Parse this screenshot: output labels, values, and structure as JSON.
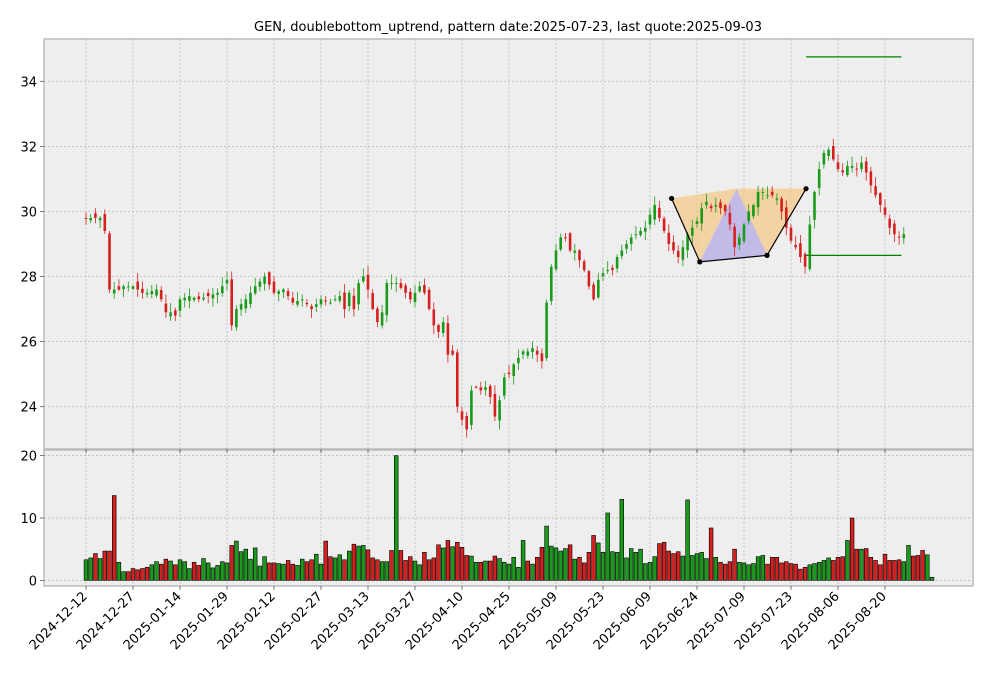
{
  "chart_data": {
    "type": "candlestick",
    "title": "GEN, doublebottom_uptrend, pattern date:2025-07-23, last quote:2025-09-03",
    "price_ylim": [
      22.7,
      35.3
    ],
    "price_yticks": [
      24,
      26,
      28,
      30,
      32,
      34
    ],
    "volume_ylim": [
      -0.9,
      20.9
    ],
    "volume_yticks": [
      0,
      10,
      20
    ],
    "x_tick_labels": [
      "2024-12-12",
      "2024-12-27",
      "2025-01-14",
      "2025-01-29",
      "2025-02-12",
      "2025-02-27",
      "2025-03-13",
      "2025-03-27",
      "2025-04-10",
      "2025-04-25",
      "2025-05-09",
      "2025-05-23",
      "2025-06-09",
      "2025-06-24",
      "2025-07-09",
      "2025-07-23",
      "2025-08-06",
      "2025-08-20"
    ],
    "x_tick_index": [
      0,
      10,
      20,
      30,
      40,
      50,
      60,
      70,
      80,
      90,
      100,
      110,
      120,
      130,
      140,
      150,
      160,
      170
    ],
    "grid": true,
    "candle_anchors": [
      [
        0,
        29.8
      ],
      [
        3,
        29.8
      ],
      [
        4,
        29.4
      ],
      [
        5,
        27.6
      ],
      [
        6,
        27.6
      ],
      [
        7,
        27.6
      ],
      [
        8,
        27.7
      ],
      [
        10,
        27.7
      ],
      [
        12,
        27.5
      ],
      [
        13,
        27.5
      ],
      [
        15,
        27.6
      ],
      [
        16,
        27.3
      ],
      [
        17,
        26.9
      ],
      [
        18,
        26.9
      ],
      [
        19,
        26.8
      ],
      [
        20,
        27.3
      ],
      [
        22,
        27.4
      ],
      [
        24,
        27.3
      ],
      [
        26,
        27.4
      ],
      [
        28,
        27.5
      ],
      [
        30,
        27.9
      ],
      [
        31,
        26.5
      ],
      [
        32,
        27.0
      ],
      [
        34,
        27.3
      ],
      [
        36,
        27.7
      ],
      [
        38,
        28.0
      ],
      [
        40,
        27.5
      ],
      [
        42,
        27.6
      ],
      [
        44,
        27.2
      ],
      [
        46,
        27.3
      ],
      [
        48,
        27.0
      ],
      [
        50,
        27.3
      ],
      [
        52,
        27.2
      ],
      [
        54,
        27.4
      ],
      [
        55,
        27.0
      ],
      [
        56,
        27.5
      ],
      [
        57,
        27.0
      ],
      [
        58,
        27.8
      ],
      [
        59,
        28.0
      ],
      [
        60,
        27.6
      ],
      [
        61,
        27.0
      ],
      [
        62,
        26.6
      ],
      [
        63,
        26.9
      ],
      [
        64,
        27.8
      ],
      [
        66,
        27.8
      ],
      [
        68,
        27.5
      ],
      [
        69,
        27.3
      ],
      [
        71,
        27.7
      ],
      [
        72,
        27.5
      ],
      [
        73,
        27.0
      ],
      [
        74,
        26.5
      ],
      [
        75,
        26.3
      ],
      [
        76,
        26.6
      ],
      [
        77,
        25.6
      ],
      [
        78,
        25.6
      ],
      [
        79,
        24.0
      ],
      [
        80,
        23.6
      ],
      [
        81,
        23.3
      ],
      [
        82,
        24.5
      ],
      [
        83,
        24.6
      ],
      [
        84,
        24.5
      ],
      [
        85,
        24.6
      ],
      [
        86,
        24.3
      ],
      [
        87,
        23.7
      ],
      [
        88,
        24.2
      ],
      [
        89,
        24.9
      ],
      [
        90,
        25.0
      ],
      [
        91,
        25.3
      ],
      [
        92,
        25.5
      ],
      [
        93,
        25.7
      ],
      [
        94,
        25.7
      ],
      [
        95,
        25.8
      ],
      [
        96,
        25.6
      ],
      [
        97,
        25.4
      ],
      [
        98,
        27.2
      ],
      [
        99,
        28.3
      ],
      [
        100,
        28.8
      ],
      [
        101,
        29.2
      ],
      [
        102,
        29.2
      ],
      [
        103,
        28.8
      ],
      [
        104,
        28.8
      ],
      [
        105,
        28.5
      ],
      [
        106,
        28.2
      ],
      [
        107,
        27.7
      ],
      [
        108,
        27.3
      ],
      [
        109,
        27.9
      ],
      [
        110,
        28.1
      ],
      [
        111,
        28.2
      ],
      [
        112,
        28.2
      ],
      [
        113,
        28.6
      ],
      [
        114,
        28.8
      ],
      [
        115,
        29.0
      ],
      [
        116,
        29.2
      ],
      [
        117,
        29.3
      ],
      [
        118,
        29.4
      ],
      [
        119,
        29.5
      ],
      [
        120,
        29.9
      ],
      [
        121,
        30.2
      ],
      [
        122,
        29.8
      ],
      [
        123,
        29.4
      ],
      [
        124,
        29.0
      ],
      [
        125,
        28.8
      ],
      [
        126,
        28.6
      ],
      [
        127,
        28.9
      ],
      [
        128,
        29.3
      ],
      [
        129,
        29.5
      ],
      [
        130,
        29.7
      ],
      [
        131,
        30.1
      ],
      [
        132,
        30.3
      ],
      [
        133,
        30.1
      ],
      [
        134,
        30.2
      ],
      [
        135,
        30.1
      ],
      [
        136,
        30.0
      ],
      [
        137,
        29.6
      ],
      [
        138,
        28.9
      ],
      [
        139,
        29.2
      ],
      [
        140,
        29.6
      ],
      [
        141,
        30.0
      ],
      [
        142,
        30.2
      ],
      [
        143,
        30.6
      ],
      [
        144,
        30.6
      ],
      [
        145,
        30.5
      ],
      [
        146,
        30.5
      ],
      [
        147,
        30.4
      ],
      [
        148,
        30.0
      ],
      [
        149,
        29.5
      ],
      [
        150,
        29.1
      ],
      [
        151,
        28.9
      ],
      [
        152,
        28.6
      ],
      [
        153,
        28.3
      ],
      [
        154,
        29.6
      ],
      [
        155,
        30.6
      ],
      [
        156,
        31.3
      ],
      [
        157,
        31.8
      ],
      [
        158,
        31.9
      ],
      [
        159,
        31.6
      ],
      [
        160,
        31.3
      ],
      [
        161,
        31.2
      ],
      [
        162,
        31.4
      ],
      [
        163,
        31.4
      ],
      [
        164,
        31.3
      ],
      [
        165,
        31.5
      ],
      [
        166,
        31.2
      ],
      [
        167,
        30.8
      ],
      [
        168,
        30.5
      ],
      [
        169,
        30.2
      ],
      [
        170,
        29.9
      ],
      [
        171,
        29.5
      ],
      [
        172,
        29.3
      ],
      [
        173,
        29.2
      ],
      [
        174,
        29.3
      ]
    ],
    "volume_anchors": [
      [
        0,
        3.3
      ],
      [
        1,
        3.6
      ],
      [
        2,
        4.3
      ],
      [
        3,
        3.5
      ],
      [
        4,
        4.7
      ],
      [
        5,
        4.7
      ],
      [
        6,
        13.6
      ],
      [
        7,
        2.9
      ],
      [
        8,
        1.4
      ],
      [
        9,
        1.4
      ],
      [
        10,
        1.9
      ],
      [
        11,
        1.7
      ],
      [
        12,
        1.9
      ],
      [
        13,
        2.1
      ],
      [
        14,
        2.5
      ],
      [
        15,
        3.0
      ],
      [
        16,
        2.6
      ],
      [
        17,
        3.4
      ],
      [
        18,
        3.1
      ],
      [
        19,
        2.5
      ],
      [
        20,
        3.3
      ],
      [
        21,
        3.0
      ],
      [
        22,
        1.9
      ],
      [
        23,
        2.9
      ],
      [
        24,
        2.4
      ],
      [
        25,
        3.5
      ],
      [
        26,
        2.8
      ],
      [
        27,
        2.0
      ],
      [
        28,
        2.4
      ],
      [
        29,
        3.0
      ],
      [
        30,
        2.8
      ],
      [
        31,
        5.6
      ],
      [
        32,
        6.3
      ],
      [
        33,
        4.6
      ],
      [
        34,
        5.0
      ],
      [
        35,
        3.4
      ],
      [
        36,
        5.2
      ],
      [
        37,
        2.3
      ],
      [
        38,
        3.8
      ],
      [
        39,
        2.8
      ],
      [
        40,
        2.8
      ],
      [
        41,
        2.7
      ],
      [
        42,
        2.6
      ],
      [
        43,
        3.2
      ],
      [
        44,
        2.6
      ],
      [
        45,
        2.4
      ],
      [
        46,
        3.4
      ],
      [
        47,
        3.0
      ],
      [
        48,
        3.3
      ],
      [
        49,
        4.2
      ],
      [
        50,
        2.6
      ],
      [
        51,
        6.3
      ],
      [
        52,
        3.8
      ],
      [
        53,
        3.6
      ],
      [
        54,
        4.1
      ],
      [
        55,
        3.3
      ],
      [
        56,
        4.7
      ],
      [
        57,
        5.8
      ],
      [
        58,
        5.5
      ],
      [
        59,
        5.6
      ],
      [
        60,
        4.9
      ],
      [
        61,
        3.6
      ],
      [
        62,
        3.3
      ],
      [
        63,
        3.0
      ],
      [
        64,
        3.0
      ],
      [
        65,
        4.8
      ],
      [
        66,
        20.0
      ],
      [
        67,
        4.8
      ],
      [
        68,
        3.2
      ],
      [
        69,
        3.8
      ],
      [
        70,
        3.1
      ],
      [
        71,
        2.5
      ],
      [
        72,
        4.5
      ],
      [
        73,
        3.3
      ],
      [
        74,
        3.6
      ],
      [
        75,
        5.7
      ],
      [
        76,
        5.2
      ],
      [
        77,
        6.4
      ],
      [
        78,
        5.4
      ],
      [
        79,
        6.1
      ],
      [
        80,
        5.3
      ],
      [
        81,
        4.0
      ],
      [
        82,
        3.9
      ],
      [
        83,
        2.9
      ],
      [
        84,
        2.9
      ],
      [
        85,
        3.1
      ],
      [
        86,
        3.1
      ],
      [
        87,
        3.9
      ],
      [
        88,
        3.5
      ],
      [
        89,
        2.9
      ],
      [
        90,
        2.6
      ],
      [
        91,
        3.7
      ],
      [
        92,
        2.1
      ],
      [
        93,
        6.4
      ],
      [
        94,
        3.1
      ],
      [
        95,
        2.6
      ],
      [
        96,
        3.7
      ],
      [
        97,
        5.3
      ],
      [
        98,
        8.7
      ],
      [
        99,
        5.5
      ],
      [
        100,
        5.2
      ],
      [
        101,
        4.7
      ],
      [
        102,
        5.1
      ],
      [
        103,
        5.7
      ],
      [
        104,
        3.4
      ],
      [
        105,
        3.7
      ],
      [
        106,
        2.8
      ],
      [
        107,
        4.5
      ],
      [
        108,
        7.2
      ],
      [
        109,
        6.0
      ],
      [
        110,
        4.5
      ],
      [
        111,
        10.8
      ],
      [
        112,
        4.6
      ],
      [
        113,
        4.5
      ],
      [
        114,
        13.0
      ],
      [
        115,
        3.6
      ],
      [
        116,
        5.1
      ],
      [
        117,
        4.5
      ],
      [
        118,
        5.0
      ],
      [
        119,
        2.7
      ],
      [
        120,
        2.9
      ],
      [
        121,
        3.8
      ],
      [
        122,
        5.9
      ],
      [
        123,
        6.1
      ],
      [
        124,
        4.7
      ],
      [
        125,
        4.3
      ],
      [
        126,
        4.6
      ],
      [
        127,
        3.9
      ],
      [
        128,
        12.9
      ],
      [
        129,
        4.0
      ],
      [
        130,
        4.3
      ],
      [
        131,
        4.5
      ],
      [
        132,
        3.5
      ],
      [
        133,
        8.4
      ],
      [
        134,
        3.7
      ],
      [
        135,
        2.9
      ],
      [
        136,
        2.6
      ],
      [
        137,
        3.0
      ],
      [
        138,
        5.0
      ],
      [
        139,
        2.9
      ],
      [
        140,
        2.8
      ],
      [
        141,
        2.5
      ],
      [
        142,
        2.7
      ],
      [
        143,
        3.8
      ],
      [
        144,
        4.0
      ],
      [
        145,
        2.6
      ],
      [
        146,
        3.7
      ],
      [
        147,
        3.7
      ],
      [
        148,
        2.8
      ],
      [
        149,
        3.0
      ],
      [
        150,
        2.7
      ],
      [
        151,
        2.6
      ],
      [
        152,
        1.8
      ],
      [
        153,
        2.1
      ],
      [
        154,
        2.5
      ],
      [
        155,
        2.7
      ],
      [
        156,
        2.9
      ],
      [
        157,
        3.2
      ],
      [
        158,
        3.6
      ],
      [
        159,
        3.2
      ],
      [
        160,
        3.7
      ],
      [
        161,
        3.8
      ],
      [
        162,
        6.4
      ],
      [
        163,
        10.0
      ],
      [
        164,
        5.0
      ],
      [
        165,
        5.0
      ],
      [
        166,
        5.1
      ],
      [
        167,
        3.7
      ],
      [
        168,
        3.2
      ],
      [
        169,
        2.5
      ],
      [
        170,
        4.2
      ],
      [
        171,
        3.2
      ],
      [
        172,
        3.2
      ],
      [
        173,
        3.3
      ],
      [
        174,
        3.0
      ],
      [
        175,
        5.6
      ],
      [
        176,
        3.9
      ],
      [
        177,
        4.0
      ],
      [
        178,
        4.8
      ],
      [
        179,
        4.1
      ],
      [
        180,
        0.5
      ]
    ],
    "pattern_points": [
      {
        "index": 124.6,
        "value": 30.4
      },
      {
        "index": 130.6,
        "value": 28.45
      },
      {
        "index": 144.9,
        "value": 28.65
      },
      {
        "index": 153.2,
        "value": 30.7
      }
    ],
    "pattern_mid": {
      "index": 138.4,
      "value": 30.7
    },
    "levels": [
      {
        "value": 34.75,
        "from": 153.2,
        "to": 173.5
      },
      {
        "value": 28.65,
        "from": 153.2,
        "to": 173.5
      }
    ],
    "colors": {
      "up": "#1a9a1a",
      "down": "#d62020",
      "volume_edge": "#000000",
      "level_line": "#008000",
      "pattern_line": "#000000",
      "fill_orange": "#f5c98a",
      "fill_blue": "#b9b6f5",
      "plot_bg": "#eeeeee",
      "frame": "#bbbbbb",
      "grid": "#b5b5b5"
    }
  }
}
